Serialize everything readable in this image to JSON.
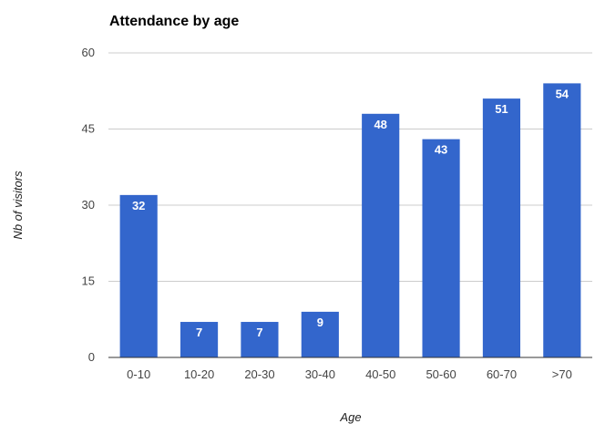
{
  "chart_data": {
    "type": "bar",
    "title": "Attendance by age",
    "xlabel": "Age",
    "ylabel": "Nb of visitors",
    "categories": [
      "0-10",
      "10-20",
      "20-30",
      "30-40",
      "40-50",
      "50-60",
      "60-70",
      ">70"
    ],
    "series": [
      {
        "values": [
          32,
          7,
          7,
          9,
          48,
          43,
          51,
          54
        ]
      }
    ],
    "ylim": [
      0,
      60
    ],
    "yticks": [
      0,
      15,
      30,
      45,
      60
    ],
    "grid": true,
    "legend": "none",
    "data_labels": true,
    "colors": {
      "bar": "#3366cc",
      "grid": "#cccccc",
      "baseline": "#333333"
    }
  }
}
